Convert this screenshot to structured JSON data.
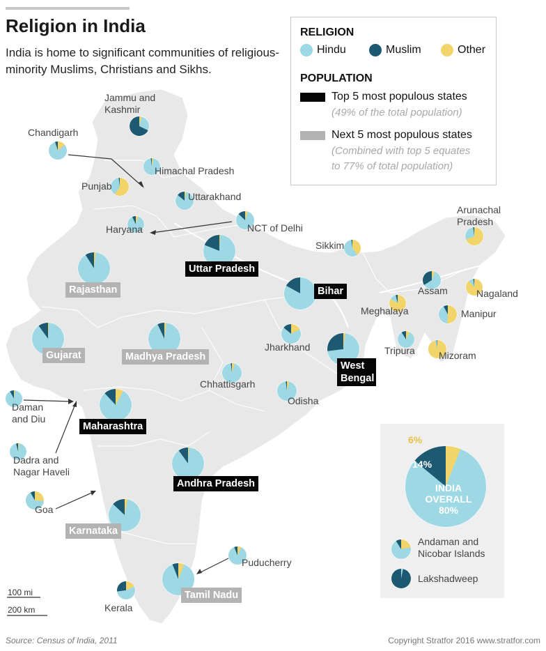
{
  "title": "Religion in India",
  "subtitle": "India is home to significant communities of religious-minority Muslims, Christians and Sikhs.",
  "colors": {
    "hindu": "#9dd8e4",
    "muslim": "#1d5a72",
    "other": "#f1d46a",
    "map_fill": "#e8e8e8",
    "top5": "#050505",
    "next5": "#b3b3b3"
  },
  "legend": {
    "religion_heading": "RELIGION",
    "hindu": "Hindu",
    "muslim": "Muslim",
    "other": "Other",
    "population_heading": "POPULATION",
    "top5_label": "Top 5 most populous states",
    "top5_note": "(49% of the total population)",
    "next5_label": "Next 5 most populous states",
    "next5_note_1": "(Combined with top 5 equates",
    "next5_note_2": "to 77% of total population)"
  },
  "labels": {
    "jammu_1": "Jammu and",
    "jammu_2": "Kashmir",
    "chandigarh": "Chandigarh",
    "himachal": "Himachal Pradesh",
    "punjab": "Punjab",
    "uttarakhand": "Uttarakhand",
    "haryana": "Haryana",
    "delhi": "NCT of Delhi",
    "sikkim": "Sikkim",
    "arunachal_1": "Arunachal",
    "arunachal_2": "Pradesh",
    "assam": "Assam",
    "nagaland": "Nagaland",
    "meghalaya": "Meghalaya",
    "manipur": "Manipur",
    "tripura": "Tripura",
    "mizoram": "Mizoram",
    "jharkhand": "Jharkhand",
    "chhattisgarh": "Chhattisgarh",
    "odisha": "Odisha",
    "daman_1": "Daman",
    "daman_2": "and Diu",
    "dadra_1": "Dadra and",
    "dadra_2": "Nagar Haveli",
    "goa": "Goa",
    "puducherry": "Puducherry",
    "kerala": "Kerala"
  },
  "tags": {
    "uttar_pradesh": "Uttar Pradesh",
    "bihar": "Bihar",
    "west_bengal_1": "West",
    "west_bengal_2": "Bengal",
    "maharashtra": "Maharashtra",
    "andhra_pradesh": "Andhra Pradesh",
    "rajasthan": "Rajasthan",
    "gujarat": "Gujarat",
    "madhya_pradesh": "Madhya Pradesh",
    "karnataka": "Karnataka",
    "tamil_nadu": "Tamil Nadu"
  },
  "overall": {
    "label_1": "INDIA",
    "label_2": "OVERALL",
    "hindu_pct": "80%",
    "muslim_pct": "14%",
    "other_pct": "6%",
    "hindu": 80,
    "muslim": 14,
    "other": 6,
    "andaman_1": "Andaman and",
    "andaman_2": "Nicobar Islands",
    "lakshadweep": "Lakshadweep"
  },
  "state_shares": {
    "jammu_kashmir": {
      "hindu": 28,
      "muslim": 68,
      "other": 4
    },
    "chandigarh": {
      "hindu": 81,
      "muslim": 5,
      "other": 14
    },
    "himachal": {
      "hindu": 95,
      "muslim": 2,
      "other": 3
    },
    "punjab": {
      "hindu": 38,
      "muslim": 2,
      "other": 60
    },
    "uttarakhand": {
      "hindu": 83,
      "muslim": 14,
      "other": 3
    },
    "haryana": {
      "hindu": 88,
      "muslim": 7,
      "other": 5
    },
    "delhi": {
      "hindu": 82,
      "muslim": 13,
      "other": 5
    },
    "uttar_pradesh": {
      "hindu": 80,
      "muslim": 19,
      "other": 1
    },
    "rajasthan": {
      "hindu": 89,
      "muslim": 9,
      "other": 2
    },
    "bihar": {
      "hindu": 83,
      "muslim": 17,
      "other": 0
    },
    "sikkim": {
      "hindu": 58,
      "muslim": 2,
      "other": 40
    },
    "arunachal": {
      "hindu": 29,
      "muslim": 2,
      "other": 69
    },
    "assam": {
      "hindu": 61,
      "muslim": 34,
      "other": 5
    },
    "nagaland": {
      "hindu": 9,
      "muslim": 2,
      "other": 89
    },
    "meghalaya": {
      "hindu": 12,
      "muslim": 4,
      "other": 84
    },
    "manipur": {
      "hindu": 41,
      "muslim": 8,
      "other": 51
    },
    "tripura": {
      "hindu": 83,
      "muslim": 9,
      "other": 8
    },
    "mizoram": {
      "hindu": 3,
      "muslim": 1,
      "other": 96
    },
    "gujarat": {
      "hindu": 89,
      "muslim": 10,
      "other": 1
    },
    "madhya_pradesh": {
      "hindu": 91,
      "muslim": 7,
      "other": 2
    },
    "jharkhand": {
      "hindu": 68,
      "muslim": 14,
      "other": 18
    },
    "west_bengal": {
      "hindu": 71,
      "muslim": 27,
      "other": 2
    },
    "chhattisgarh": {
      "hindu": 93,
      "muslim": 2,
      "other": 5
    },
    "odisha": {
      "hindu": 94,
      "muslim": 2,
      "other": 4
    },
    "daman_diu": {
      "hindu": 90,
      "muslim": 8,
      "other": 2
    },
    "dadra": {
      "hindu": 94,
      "muslim": 4,
      "other": 2
    },
    "maharashtra": {
      "hindu": 80,
      "muslim": 12,
      "other": 8
    },
    "andhra_pradesh": {
      "hindu": 89,
      "muslim": 10,
      "other": 1
    },
    "goa": {
      "hindu": 66,
      "muslim": 8,
      "other": 26
    },
    "karnataka": {
      "hindu": 84,
      "muslim": 13,
      "other": 3
    },
    "puducherry": {
      "hindu": 87,
      "muslim": 6,
      "other": 7
    },
    "tamil_nadu": {
      "hindu": 88,
      "muslim": 6,
      "other": 6
    },
    "kerala": {
      "hindu": 55,
      "muslim": 27,
      "other": 18
    },
    "andaman": {
      "hindu": 69,
      "muslim": 9,
      "other": 22
    },
    "lakshadweep": {
      "hindu": 3,
      "muslim": 97,
      "other": 0
    }
  },
  "scale": {
    "mi": "100 mi",
    "km": "200 km"
  },
  "source": "Source: Census of India, 2011",
  "copyright": "Copyright Stratfor 2016   www.stratfor.com"
}
